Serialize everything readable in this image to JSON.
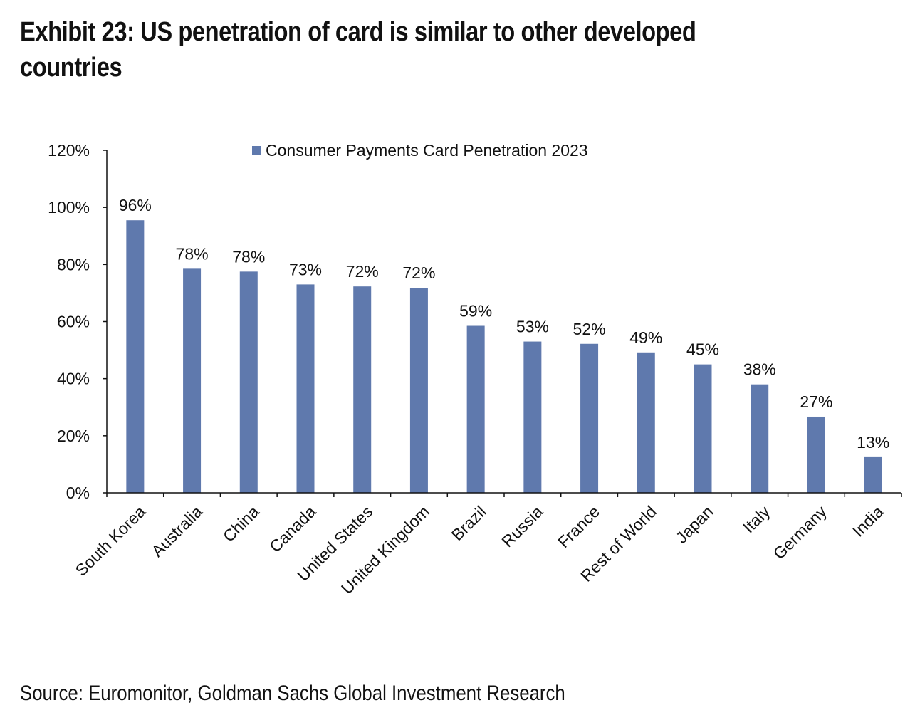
{
  "page": {
    "title": "Exhibit 23: US penetration of card is similar to other developed countries",
    "source": "Source: Euromonitor, Goldman Sachs Global Investment Research"
  },
  "chart_data": {
    "type": "bar",
    "title": "Exhibit 23: US penetration of card is similar to other developed countries",
    "xlabel": "",
    "ylabel": "",
    "ylim": [
      0,
      120
    ],
    "yticks": [
      0,
      20,
      40,
      60,
      80,
      100,
      120
    ],
    "ytick_labels": [
      "0%",
      "20%",
      "40%",
      "60%",
      "80%",
      "100%",
      "120%"
    ],
    "grid": false,
    "legend_position": "top-center",
    "categories": [
      "South Korea",
      "Australia",
      "China",
      "Canada",
      "United States",
      "United Kingdom",
      "Brazil",
      "Russia",
      "France",
      "Rest of World",
      "Japan",
      "Italy",
      "Germany",
      "India"
    ],
    "series": [
      {
        "name": "Consumer Payments Card Penetration 2023",
        "color": "#5f79ad",
        "values": [
          95.5,
          78.5,
          77.5,
          73,
          72.3,
          71.8,
          58.5,
          53,
          52.2,
          49.2,
          45,
          38,
          26.7,
          12.5
        ],
        "data_labels": [
          "96%",
          "78%",
          "78%",
          "73%",
          "72%",
          "72%",
          "59%",
          "53%",
          "52%",
          "49%",
          "45%",
          "38%",
          "27%",
          "13%"
        ]
      }
    ]
  }
}
